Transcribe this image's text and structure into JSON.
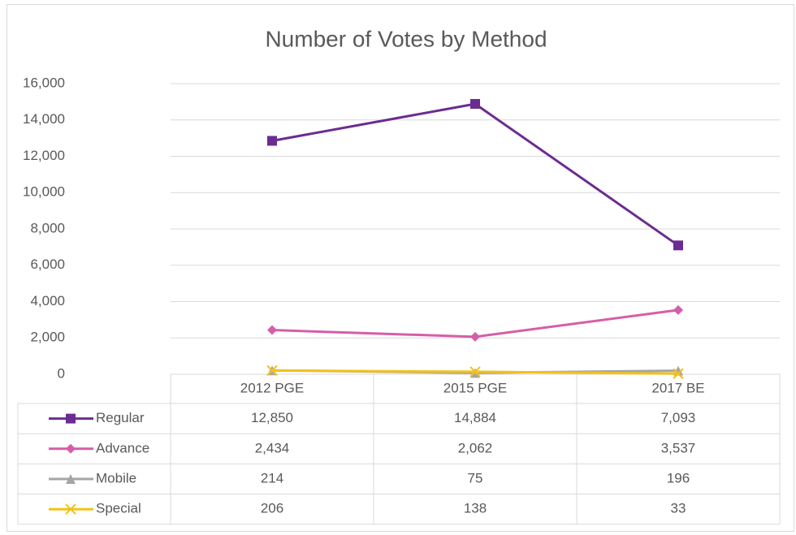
{
  "chart_data": {
    "type": "line",
    "title": "Number of Votes by Method",
    "categories": [
      "2012 PGE",
      "2015 PGE",
      "2017 BE"
    ],
    "series": [
      {
        "name": "Regular",
        "color": "#6b2c91",
        "marker": "square",
        "values": [
          12850,
          14884,
          7093
        ],
        "value_labels": [
          "12,850",
          "14,884",
          "7,093"
        ]
      },
      {
        "name": "Advance",
        "color": "#d55ea8",
        "marker": "diamond",
        "values": [
          2434,
          2062,
          3537
        ],
        "value_labels": [
          "2,434",
          "2,062",
          "3,537"
        ]
      },
      {
        "name": "Mobile",
        "color": "#a5a5a5",
        "marker": "triangle",
        "values": [
          214,
          75,
          196
        ]
      },
      {
        "name": "Special",
        "color": "#f2c21b",
        "marker": "x",
        "values": [
          206,
          138,
          33
        ]
      }
    ],
    "ylim": [
      0,
      16000
    ],
    "yticks": [
      0,
      {
        "value": 2000,
        "label": "2,000"
      },
      {
        "value": 4000,
        "label": "4,000"
      },
      {
        "value": 6000,
        "label": "6,000"
      },
      {
        "value": 8000,
        "label": "8,000"
      },
      {
        "value": 10000,
        "label": "10,000"
      },
      {
        "value": 12000,
        "label": "12,000"
      },
      {
        "value": 14000,
        "label": "14,000"
      },
      {
        "value": 16000,
        "label": "16,000"
      }
    ],
    "grid": true
  }
}
